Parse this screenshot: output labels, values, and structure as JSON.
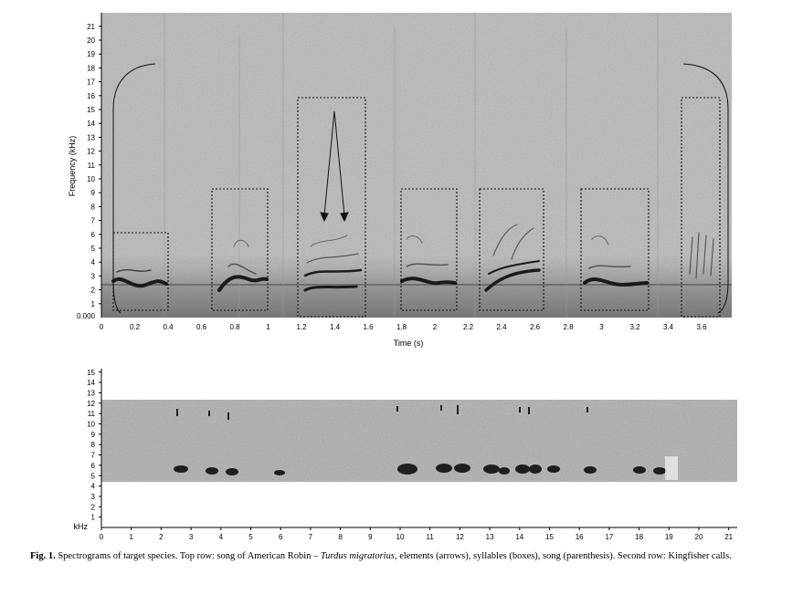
{
  "top_panel": {
    "ylabel": "Frequency (kHz)",
    "xlabel": "Time (s)",
    "origin_label": "0.000",
    "y_ticks": [
      "1",
      "2",
      "3",
      "4",
      "5",
      "6",
      "7",
      "8",
      "9",
      "10",
      "11",
      "12",
      "13",
      "14",
      "15",
      "16",
      "17",
      "18",
      "19",
      "20",
      "21"
    ],
    "x_ticks": [
      "0",
      "0.2",
      "0.4",
      "0.6",
      "0.8",
      "1",
      "1.2",
      "1.4",
      "1.6",
      "1.8",
      "2",
      "2.2",
      "2.4",
      "2.6",
      "2.8",
      "3",
      "3.2",
      "3.4",
      "3.6"
    ],
    "annotation_types": [
      "elements (arrows)",
      "syllables (boxes)",
      "song (parenthesis)"
    ]
  },
  "bottom_panel": {
    "ylabel": "kHz",
    "y_ticks": [
      "1",
      "2",
      "3",
      "4",
      "5",
      "6",
      "7",
      "8",
      "9",
      "10",
      "11",
      "12",
      "13",
      "14",
      "15"
    ],
    "x_ticks": [
      "0",
      "1",
      "2",
      "3",
      "4",
      "5",
      "6",
      "7",
      "8",
      "9",
      "10",
      "11",
      "12",
      "13",
      "14",
      "15",
      "16",
      "17",
      "18",
      "19",
      "20",
      "21"
    ]
  },
  "caption": {
    "lead": "Fig. 1.",
    "text_before_italic": " Spectrograms of target species. Top row: song of American Robin – ",
    "italic": "Turdus migratorius",
    "text_after_italic": ", elements (arrows), syllables (boxes), song (parenthesis). Second row: Kingfisher calls."
  }
}
